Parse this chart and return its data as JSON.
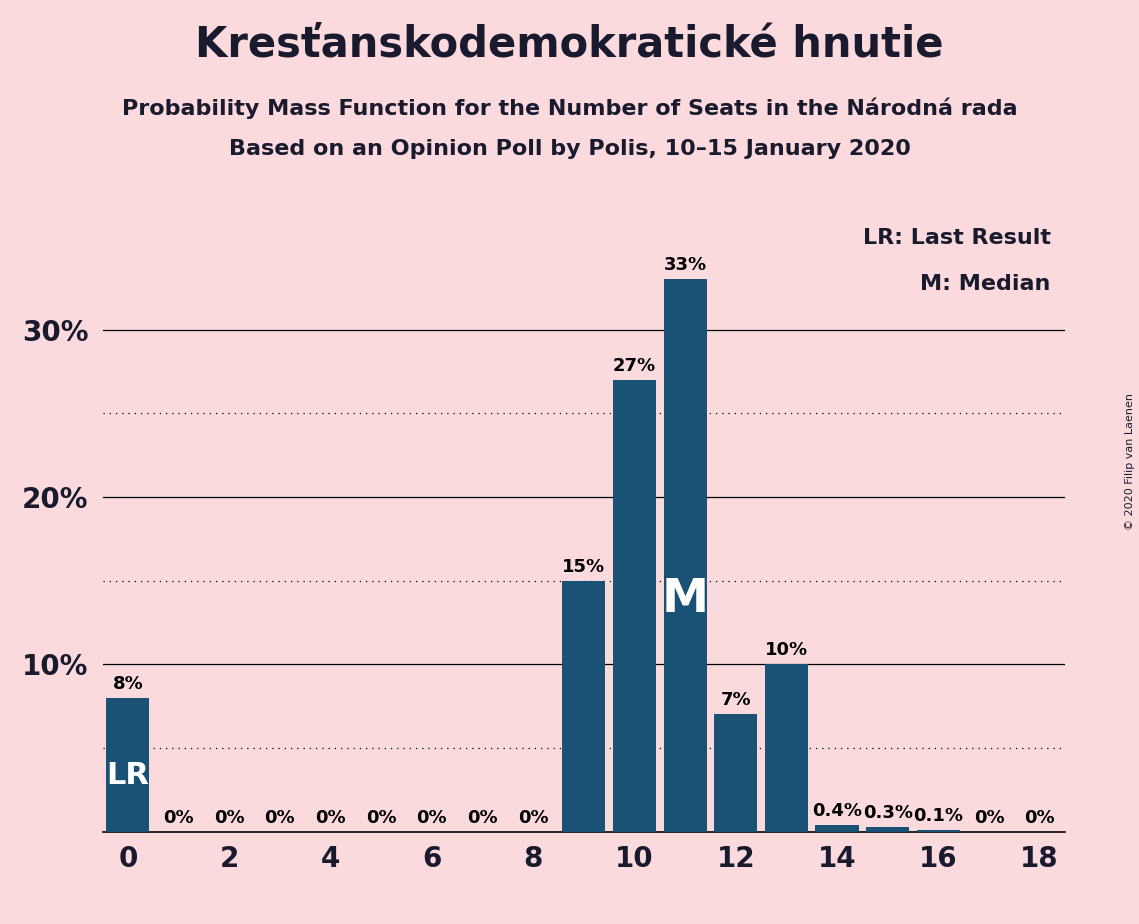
{
  "title": "Kresťanskodemokratické hnutie",
  "subtitle1": "Probability Mass Function for the Number of Seats in the Národná rada",
  "subtitle2": "Based on an Opinion Poll by Polis, 10–15 January 2020",
  "copyright": "© 2020 Filip van Laenen",
  "legend_lr": "LR: Last Result",
  "legend_m": "M: Median",
  "background_color": "#fadadd",
  "bar_color": "#1a5276",
  "seats": [
    0,
    1,
    2,
    3,
    4,
    5,
    6,
    7,
    8,
    9,
    10,
    11,
    12,
    13,
    14,
    15,
    16,
    17,
    18
  ],
  "probabilities": [
    0.08,
    0.0,
    0.0,
    0.0,
    0.0,
    0.0,
    0.0,
    0.0,
    0.0,
    0.15,
    0.27,
    0.33,
    0.07,
    0.1,
    0.004,
    0.003,
    0.001,
    0.0,
    0.0
  ],
  "label_texts": [
    "8%",
    "0%",
    "0%",
    "0%",
    "0%",
    "0%",
    "0%",
    "0%",
    "0%",
    "15%",
    "27%",
    "33%",
    "7%",
    "10%",
    "0.4%",
    "0.3%",
    "0.1%",
    "0%",
    "0%"
  ],
  "last_result_seat": 0,
  "median_seat": 11,
  "xlim": [
    -0.5,
    18.5
  ],
  "ylim": [
    0,
    0.37
  ],
  "yticks": [
    0.0,
    0.1,
    0.2,
    0.3
  ],
  "ytick_labels": [
    "",
    "10%",
    "20%",
    "30%"
  ],
  "grid_solid": [
    0.1,
    0.2,
    0.3
  ],
  "grid_dotted": [
    0.05,
    0.15,
    0.25
  ],
  "title_fontsize": 30,
  "subtitle_fontsize": 16,
  "bar_label_fontsize": 13,
  "axis_tick_fontsize": 20,
  "lr_fontsize": 22,
  "m_fontsize": 34,
  "legend_fontsize": 16
}
